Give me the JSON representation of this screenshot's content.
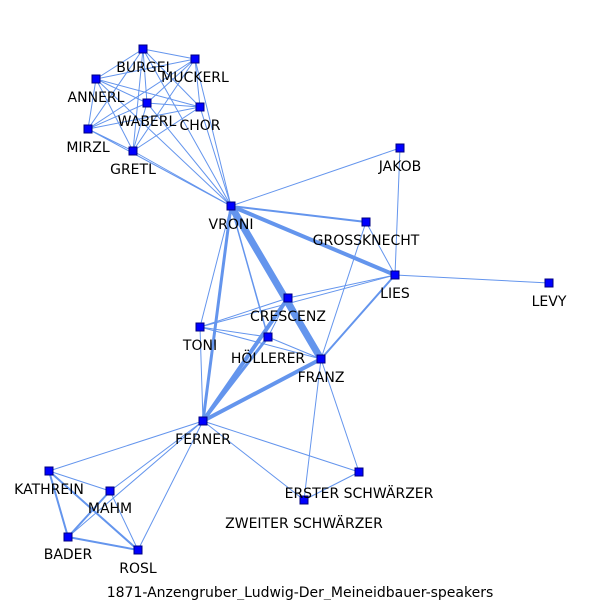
{
  "caption": "1871-Anzengruber_Ludwig-Der_Meineidbauer-speakers",
  "colors": {
    "edge": "#6495ed",
    "node_fill": "#0000ff",
    "node_stroke": "#000080",
    "background": "#ffffff"
  },
  "nodes": [
    {
      "id": "BURGEI",
      "label": "BURGEI"
    },
    {
      "id": "MUCKERL",
      "label": "MUCKERL"
    },
    {
      "id": "ANNERL",
      "label": "ANNERL"
    },
    {
      "id": "WABERL",
      "label": "WABERL"
    },
    {
      "id": "CHOR",
      "label": "CHOR"
    },
    {
      "id": "MIRZL",
      "label": "MIRZL"
    },
    {
      "id": "GRETL",
      "label": "GRETL"
    },
    {
      "id": "JAKOB",
      "label": "JAKOB"
    },
    {
      "id": "VRONI",
      "label": "VRONI"
    },
    {
      "id": "GROSSKNECHT",
      "label": "GROSSKNECHT"
    },
    {
      "id": "LIES",
      "label": "LIES"
    },
    {
      "id": "LEVY",
      "label": "LEVY"
    },
    {
      "id": "CRESCENZ",
      "label": "CRESCENZ"
    },
    {
      "id": "TONI",
      "label": "TONI"
    },
    {
      "id": "HOLLERER",
      "label": "HÖLLERER"
    },
    {
      "id": "FRANZ",
      "label": "FRANZ"
    },
    {
      "id": "FERNER",
      "label": "FERNER"
    },
    {
      "id": "KATHREIN",
      "label": "KATHREIN"
    },
    {
      "id": "MAHM",
      "label": "MAHM"
    },
    {
      "id": "ERSTER",
      "label": "ERSTER SCHWÄRZER"
    },
    {
      "id": "ZWEITER",
      "label": "ZWEITER SCHWÄRZER"
    },
    {
      "id": "BADER",
      "label": "BADER"
    },
    {
      "id": "ROSL",
      "label": "ROSL"
    }
  ],
  "edges": [
    [
      "BURGEI",
      "MUCKERL",
      1
    ],
    [
      "BURGEI",
      "ANNERL",
      1
    ],
    [
      "BURGEI",
      "WABERL",
      1
    ],
    [
      "BURGEI",
      "CHOR",
      1
    ],
    [
      "BURGEI",
      "MIRZL",
      1
    ],
    [
      "BURGEI",
      "GRETL",
      1
    ],
    [
      "BURGEI",
      "VRONI",
      1
    ],
    [
      "MUCKERL",
      "ANNERL",
      1
    ],
    [
      "MUCKERL",
      "WABERL",
      1
    ],
    [
      "MUCKERL",
      "CHOR",
      1
    ],
    [
      "MUCKERL",
      "MIRZL",
      1
    ],
    [
      "MUCKERL",
      "GRETL",
      1
    ],
    [
      "MUCKERL",
      "VRONI",
      1
    ],
    [
      "ANNERL",
      "WABERL",
      1
    ],
    [
      "ANNERL",
      "CHOR",
      1
    ],
    [
      "ANNERL",
      "MIRZL",
      1
    ],
    [
      "ANNERL",
      "GRETL",
      1
    ],
    [
      "ANNERL",
      "VRONI",
      1
    ],
    [
      "WABERL",
      "CHOR",
      1
    ],
    [
      "WABERL",
      "MIRZL",
      1
    ],
    [
      "WABERL",
      "GRETL",
      1
    ],
    [
      "WABERL",
      "VRONI",
      1
    ],
    [
      "CHOR",
      "MIRZL",
      1
    ],
    [
      "CHOR",
      "GRETL",
      1
    ],
    [
      "CHOR",
      "VRONI",
      1
    ],
    [
      "MIRZL",
      "GRETL",
      1
    ],
    [
      "MIRZL",
      "VRONI",
      1
    ],
    [
      "GRETL",
      "VRONI",
      1
    ],
    [
      "JAKOB",
      "VRONI",
      1
    ],
    [
      "JAKOB",
      "LIES",
      1
    ],
    [
      "VRONI",
      "GROSSKNECHT",
      2
    ],
    [
      "VRONI",
      "LIES",
      4
    ],
    [
      "VRONI",
      "CRESCENZ",
      2
    ],
    [
      "VRONI",
      "FRANZ",
      7
    ],
    [
      "VRONI",
      "HOLLERER",
      1.5
    ],
    [
      "VRONI",
      "TONI",
      1
    ],
    [
      "VRONI",
      "FERNER",
      3
    ],
    [
      "GROSSKNECHT",
      "LIES",
      1
    ],
    [
      "GROSSKNECHT",
      "FRANZ",
      1
    ],
    [
      "LIES",
      "LEVY",
      1
    ],
    [
      "LIES",
      "CRESCENZ",
      1
    ],
    [
      "LIES",
      "TONI",
      1
    ],
    [
      "LIES",
      "FRANZ",
      2
    ],
    [
      "CRESCENZ",
      "FRANZ",
      3
    ],
    [
      "CRESCENZ",
      "HOLLERER",
      1
    ],
    [
      "CRESCENZ",
      "TONI",
      1
    ],
    [
      "CRESCENZ",
      "FERNER",
      4
    ],
    [
      "TONI",
      "HOLLERER",
      1
    ],
    [
      "TONI",
      "FRANZ",
      1
    ],
    [
      "TONI",
      "FERNER",
      1
    ],
    [
      "HOLLERER",
      "FRANZ",
      1
    ],
    [
      "HOLLERER",
      "FERNER",
      3
    ],
    [
      "FRANZ",
      "FERNER",
      4
    ],
    [
      "FRANZ",
      "ERSTER",
      1
    ],
    [
      "FRANZ",
      "ZWEITER",
      1
    ],
    [
      "FERNER",
      "KATHREIN",
      1
    ],
    [
      "FERNER",
      "MAHM",
      1
    ],
    [
      "FERNER",
      "BADER",
      1
    ],
    [
      "FERNER",
      "ROSL",
      1
    ],
    [
      "FERNER",
      "ERSTER",
      1
    ],
    [
      "FERNER",
      "ZWEITER",
      1
    ],
    [
      "KATHREIN",
      "MAHM",
      1
    ],
    [
      "KATHREIN",
      "BADER",
      2
    ],
    [
      "KATHREIN",
      "ROSL",
      2
    ],
    [
      "MAHM",
      "BADER",
      2
    ],
    [
      "MAHM",
      "ROSL",
      1
    ],
    [
      "BADER",
      "ROSL",
      2
    ],
    [
      "ERSTER",
      "ZWEITER",
      1
    ]
  ]
}
